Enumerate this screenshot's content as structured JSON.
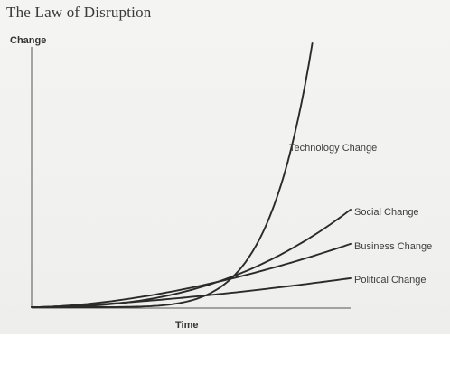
{
  "chart_data": {
    "type": "line",
    "title": "The Law of Disruption",
    "xlabel": "Time",
    "ylabel": "Change",
    "xlim": [
      0,
      1
    ],
    "ylim": [
      0,
      1
    ],
    "grid": false,
    "legend": "inline labels at curve ends",
    "series": [
      {
        "name": "Technology Change",
        "x_end": 0.88,
        "exponent": 6.5,
        "y_end": 1.0
      },
      {
        "name": "Social Change",
        "x_end": 1.0,
        "exponent": 2.5,
        "y_end": 0.37
      },
      {
        "name": "Business Change",
        "x_end": 1.0,
        "exponent": 1.7,
        "y_end": 0.24
      },
      {
        "name": "Political Change",
        "x_end": 1.0,
        "exponent": 1.5,
        "y_end": 0.11
      }
    ]
  }
}
